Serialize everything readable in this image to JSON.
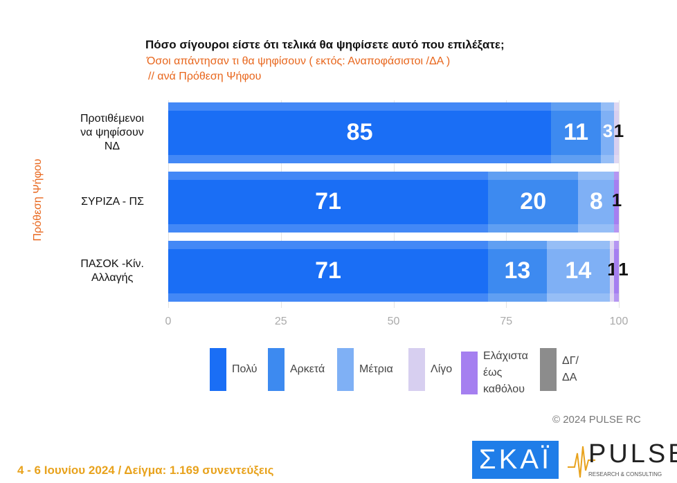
{
  "chart_data": {
    "type": "bar",
    "orientation": "horizontal",
    "stacked": true,
    "title": "Πόσο σίγουροι είστε ότι τελικά θα ψηφίσετε αυτό που επιλέξατε;",
    "subtitle": [
      "Όσοι απάντησαν τι θα ψηφίσουν ( εκτός: Αναποφάσιστοι /ΔΑ )",
      "// ανά Πρόθεση Ψήφου"
    ],
    "ylabel": "Πρόθεση Ψήφου",
    "categories": [
      [
        "Προτιθέμενοι",
        "να ψηφίσουν",
        "ΝΔ"
      ],
      [
        "ΣΥΡΙΖΑ - ΠΣ"
      ],
      [
        "ΠΑΣΟΚ -Κίν.",
        "Αλλαγής"
      ]
    ],
    "xlim": [
      0,
      100
    ],
    "xticks": [
      "0",
      "25",
      "50",
      "75",
      "100"
    ],
    "legend_position": "bottom",
    "series": [
      {
        "name": "Πολύ",
        "color": "#1a6ef5",
        "values": [
          85,
          71,
          71
        ]
      },
      {
        "name": "Αρκετά",
        "color": "#3d8af0",
        "values": [
          11,
          20,
          13
        ]
      },
      {
        "name": "Μέτρια",
        "color": "#7fb0f5",
        "values": [
          3,
          8,
          14
        ]
      },
      {
        "name": "Λίγο",
        "color": "#d7cff0",
        "values": [
          1,
          0,
          1
        ]
      },
      {
        "name": "Ελάχιστα έως καθόλου",
        "color": "#a57ff0",
        "values": [
          0,
          1,
          1
        ]
      },
      {
        "name": "ΔΓ/ ΔΑ",
        "color": "#8c8c8c",
        "values": [
          0,
          0,
          0
        ]
      }
    ]
  },
  "watermark": "PULSE",
  "copyright": "© 2024 PULSE RC",
  "footer": "4 - 6 Ιουνίου 2024  /  Δείγμα:  1.169 συνεντεύξεις",
  "logos": {
    "skai": "ΣΚΑΪ",
    "pulse": "PULSE",
    "pulse_tag": "RESEARCH & CONSULTING"
  }
}
